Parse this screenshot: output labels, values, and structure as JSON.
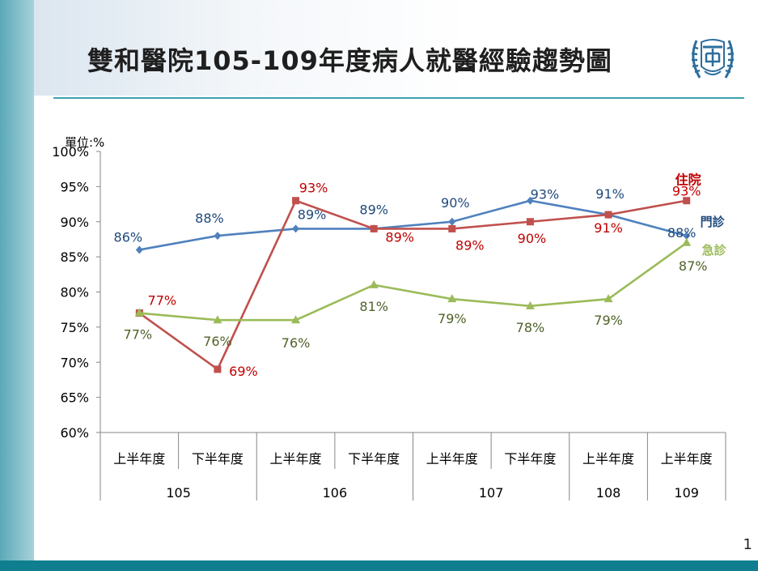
{
  "slide": {
    "title": "雙和醫院105-109年度病人就醫經驗趨勢圖",
    "page_number": "1"
  },
  "colors": {
    "outpatient": "#4f81bd",
    "inpatient": "#c0504d",
    "emergency": "#9bbb59",
    "outpatient_label": "#1f497d",
    "inpatient_label": "#c00000",
    "emergency_label": "#4f6228",
    "accent": "#0f7f8f"
  },
  "chart_data": {
    "type": "line",
    "unit_label": "單位:%",
    "ylim": [
      60,
      100
    ],
    "y_ticks": [
      "60%",
      "65%",
      "70%",
      "75%",
      "80%",
      "85%",
      "90%",
      "95%",
      "100%"
    ],
    "categories": [
      "上半年度",
      "下半年度",
      "上半年度",
      "下半年度",
      "上半年度",
      "下半年度",
      "上半年度",
      "上半年度"
    ],
    "year_groups": [
      {
        "label": "105",
        "span": 2
      },
      {
        "label": "106",
        "span": 2
      },
      {
        "label": "107",
        "span": 2
      },
      {
        "label": "108",
        "span": 1
      },
      {
        "label": "109",
        "span": 1
      }
    ],
    "series": [
      {
        "name": "門診",
        "color": "#4f81bd",
        "marker": "diamond",
        "values": [
          86,
          88,
          89,
          89,
          90,
          93,
          91,
          88
        ],
        "labels": [
          "86%",
          "88%",
          "89%",
          "89%",
          "90%",
          "93%",
          "91%",
          "88%"
        ]
      },
      {
        "name": "住院",
        "color": "#c0504d",
        "marker": "square",
        "values": [
          77,
          69,
          93,
          89,
          89,
          90,
          91,
          93
        ],
        "labels": [
          "77%",
          "69%",
          "93%",
          "89%",
          "89%",
          "90%",
          "91%",
          "93%"
        ]
      },
      {
        "name": "急診",
        "color": "#9bbb59",
        "marker": "triangle",
        "values": [
          77,
          76,
          76,
          81,
          79,
          78,
          79,
          87
        ],
        "labels": [
          "77%",
          "76%",
          "76%",
          "81%",
          "79%",
          "78%",
          "79%",
          "87%"
        ]
      }
    ],
    "grid": false,
    "legend": "inline at series ends"
  }
}
